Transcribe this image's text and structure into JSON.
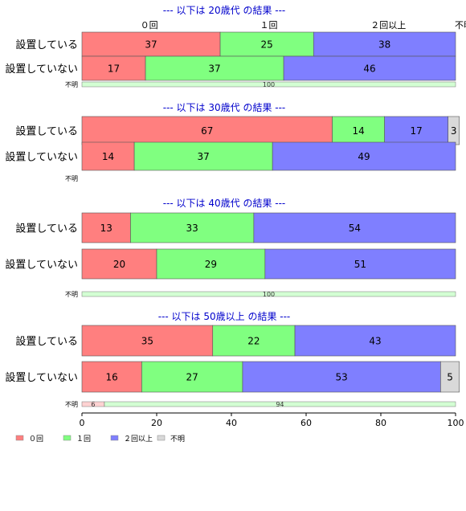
{
  "chart_data": {
    "type": "bar",
    "orientation": "horizontal",
    "stacked": true,
    "xlim": [
      0,
      100
    ],
    "x_ticks": [
      0,
      20,
      40,
      60,
      80,
      100
    ],
    "top_category_labels": [
      "０回",
      "１回",
      "２回以上",
      "不明"
    ],
    "legend": {
      "placement": "bottom-left",
      "entries": [
        "０回",
        "１回",
        "２回以上",
        "不明"
      ]
    },
    "colors": {
      "０回": "#ff7f7f",
      "１回": "#80ff80",
      "２回以上": "#7f7fff",
      "不明": "#d9d9d9"
    },
    "panels": [
      {
        "title": "--- 以下は 20歳代 の結果 ---",
        "rows": [
          {
            "label": "設置している",
            "values": [
              37,
              25,
              38,
              0
            ]
          },
          {
            "label": "設置していない",
            "values": [
              17,
              37,
              46,
              0
            ]
          }
        ],
        "unknown_row": {
          "label": "不明",
          "values": [
            0,
            100,
            0,
            0
          ]
        }
      },
      {
        "title": "--- 以下は 30歳代 の結果 ---",
        "rows": [
          {
            "label": "設置している",
            "values": [
              67,
              14,
              17,
              3
            ]
          },
          {
            "label": "設置していない",
            "values": [
              14,
              37,
              49,
              0
            ]
          }
        ],
        "unknown_row": {
          "label": "不明",
          "values": [
            0,
            0,
            0,
            0
          ]
        }
      },
      {
        "title": "--- 以下は 40歳代 の結果 ---",
        "rows": [
          {
            "label": "設置している",
            "values": [
              13,
              33,
              54,
              0
            ]
          },
          {
            "label": "設置していない",
            "values": [
              20,
              29,
              51,
              0
            ]
          }
        ],
        "unknown_row": {
          "label": "不明",
          "values": [
            0,
            100,
            0,
            0
          ]
        }
      },
      {
        "title": "--- 以下は 50歳以上 の結果 ---",
        "rows": [
          {
            "label": "設置している",
            "values": [
              35,
              22,
              43,
              0
            ]
          },
          {
            "label": "設置していない",
            "values": [
              16,
              27,
              53,
              5
            ]
          }
        ],
        "unknown_row": {
          "label": "不明",
          "values": [
            6,
            94,
            0,
            0
          ]
        }
      }
    ]
  }
}
